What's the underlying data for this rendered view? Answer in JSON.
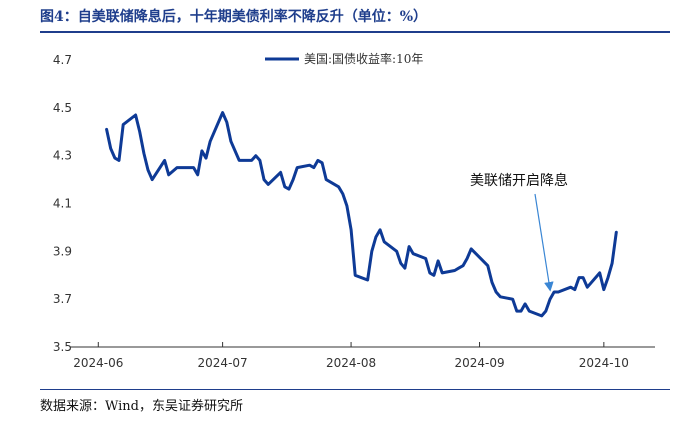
{
  "header": {
    "title": "图4：自美联储降息后，十年期美债利率不降反升（单位：%）"
  },
  "footer": {
    "source": "数据来源：Wind，东吴证券研究所"
  },
  "colors": {
    "series": "#0e3a96",
    "accent": "#1f3e8c",
    "annotation_arrow": "#3a86d4"
  },
  "chart_data": {
    "type": "line",
    "title": "自美联储降息后，十年期美债利率不降反升（单位：%）",
    "xlabel": "",
    "ylabel": "",
    "ylim": [
      3.5,
      4.7
    ],
    "yticks": [
      "3.5",
      "3.7",
      "3.9",
      "4.1",
      "4.3",
      "4.5",
      "4.7"
    ],
    "xlim": [
      "2024-05-30",
      "2024-10-09"
    ],
    "xticks": [
      {
        "date": "2024-06-01",
        "label": "2024-06"
      },
      {
        "date": "2024-07-01",
        "label": "2024-07"
      },
      {
        "date": "2024-08-01",
        "label": "2024-08"
      },
      {
        "date": "2024-09-01",
        "label": "2024-09"
      },
      {
        "date": "2024-10-01",
        "label": "2024-10"
      }
    ],
    "grid": false,
    "legend": "top-center",
    "series": [
      {
        "name": "美国:国债收益率:10年",
        "x": [
          "2024-06-03",
          "2024-06-04",
          "2024-06-05",
          "2024-06-06",
          "2024-06-07",
          "2024-06-10",
          "2024-06-11",
          "2024-06-12",
          "2024-06-13",
          "2024-06-14",
          "2024-06-17",
          "2024-06-18",
          "2024-06-20",
          "2024-06-21",
          "2024-06-24",
          "2024-06-25",
          "2024-06-26",
          "2024-06-27",
          "2024-06-28",
          "2024-07-01",
          "2024-07-02",
          "2024-07-03",
          "2024-07-05",
          "2024-07-08",
          "2024-07-09",
          "2024-07-10",
          "2024-07-11",
          "2024-07-12",
          "2024-07-15",
          "2024-07-16",
          "2024-07-17",
          "2024-07-18",
          "2024-07-19",
          "2024-07-22",
          "2024-07-23",
          "2024-07-24",
          "2024-07-25",
          "2024-07-26",
          "2024-07-29",
          "2024-07-30",
          "2024-07-31",
          "2024-08-01",
          "2024-08-02",
          "2024-08-05",
          "2024-08-06",
          "2024-08-07",
          "2024-08-08",
          "2024-08-09",
          "2024-08-12",
          "2024-08-13",
          "2024-08-14",
          "2024-08-15",
          "2024-08-16",
          "2024-08-19",
          "2024-08-20",
          "2024-08-21",
          "2024-08-22",
          "2024-08-23",
          "2024-08-26",
          "2024-08-27",
          "2024-08-28",
          "2024-08-29",
          "2024-08-30",
          "2024-09-03",
          "2024-09-04",
          "2024-09-05",
          "2024-09-06",
          "2024-09-09",
          "2024-09-10",
          "2024-09-11",
          "2024-09-12",
          "2024-09-13",
          "2024-09-16",
          "2024-09-17",
          "2024-09-18",
          "2024-09-19",
          "2024-09-20",
          "2024-09-23",
          "2024-09-24",
          "2024-09-25",
          "2024-09-26",
          "2024-09-27",
          "2024-09-30",
          "2024-10-01",
          "2024-10-02",
          "2024-10-03",
          "2024-10-04"
        ],
        "y": [
          4.41,
          4.33,
          4.29,
          4.28,
          4.43,
          4.47,
          4.4,
          4.31,
          4.24,
          4.2,
          4.28,
          4.22,
          4.25,
          4.25,
          4.25,
          4.22,
          4.32,
          4.29,
          4.36,
          4.48,
          4.44,
          4.36,
          4.28,
          4.28,
          4.3,
          4.28,
          4.2,
          4.18,
          4.23,
          4.17,
          4.16,
          4.2,
          4.25,
          4.26,
          4.25,
          4.28,
          4.27,
          4.2,
          4.17,
          4.14,
          4.09,
          3.99,
          3.8,
          3.78,
          3.9,
          3.96,
          3.99,
          3.94,
          3.9,
          3.85,
          3.83,
          3.92,
          3.89,
          3.87,
          3.81,
          3.8,
          3.86,
          3.81,
          3.82,
          3.83,
          3.84,
          3.87,
          3.91,
          3.84,
          3.77,
          3.73,
          3.71,
          3.7,
          3.65,
          3.65,
          3.68,
          3.65,
          3.63,
          3.65,
          3.7,
          3.73,
          3.73,
          3.75,
          3.74,
          3.79,
          3.79,
          3.75,
          3.81,
          3.74,
          3.79,
          3.85,
          3.98
        ]
      }
    ],
    "annotations": [
      {
        "text": "美联储开启降息",
        "points_to": {
          "date": "2024-09-18",
          "value": 3.7
        }
      }
    ]
  }
}
